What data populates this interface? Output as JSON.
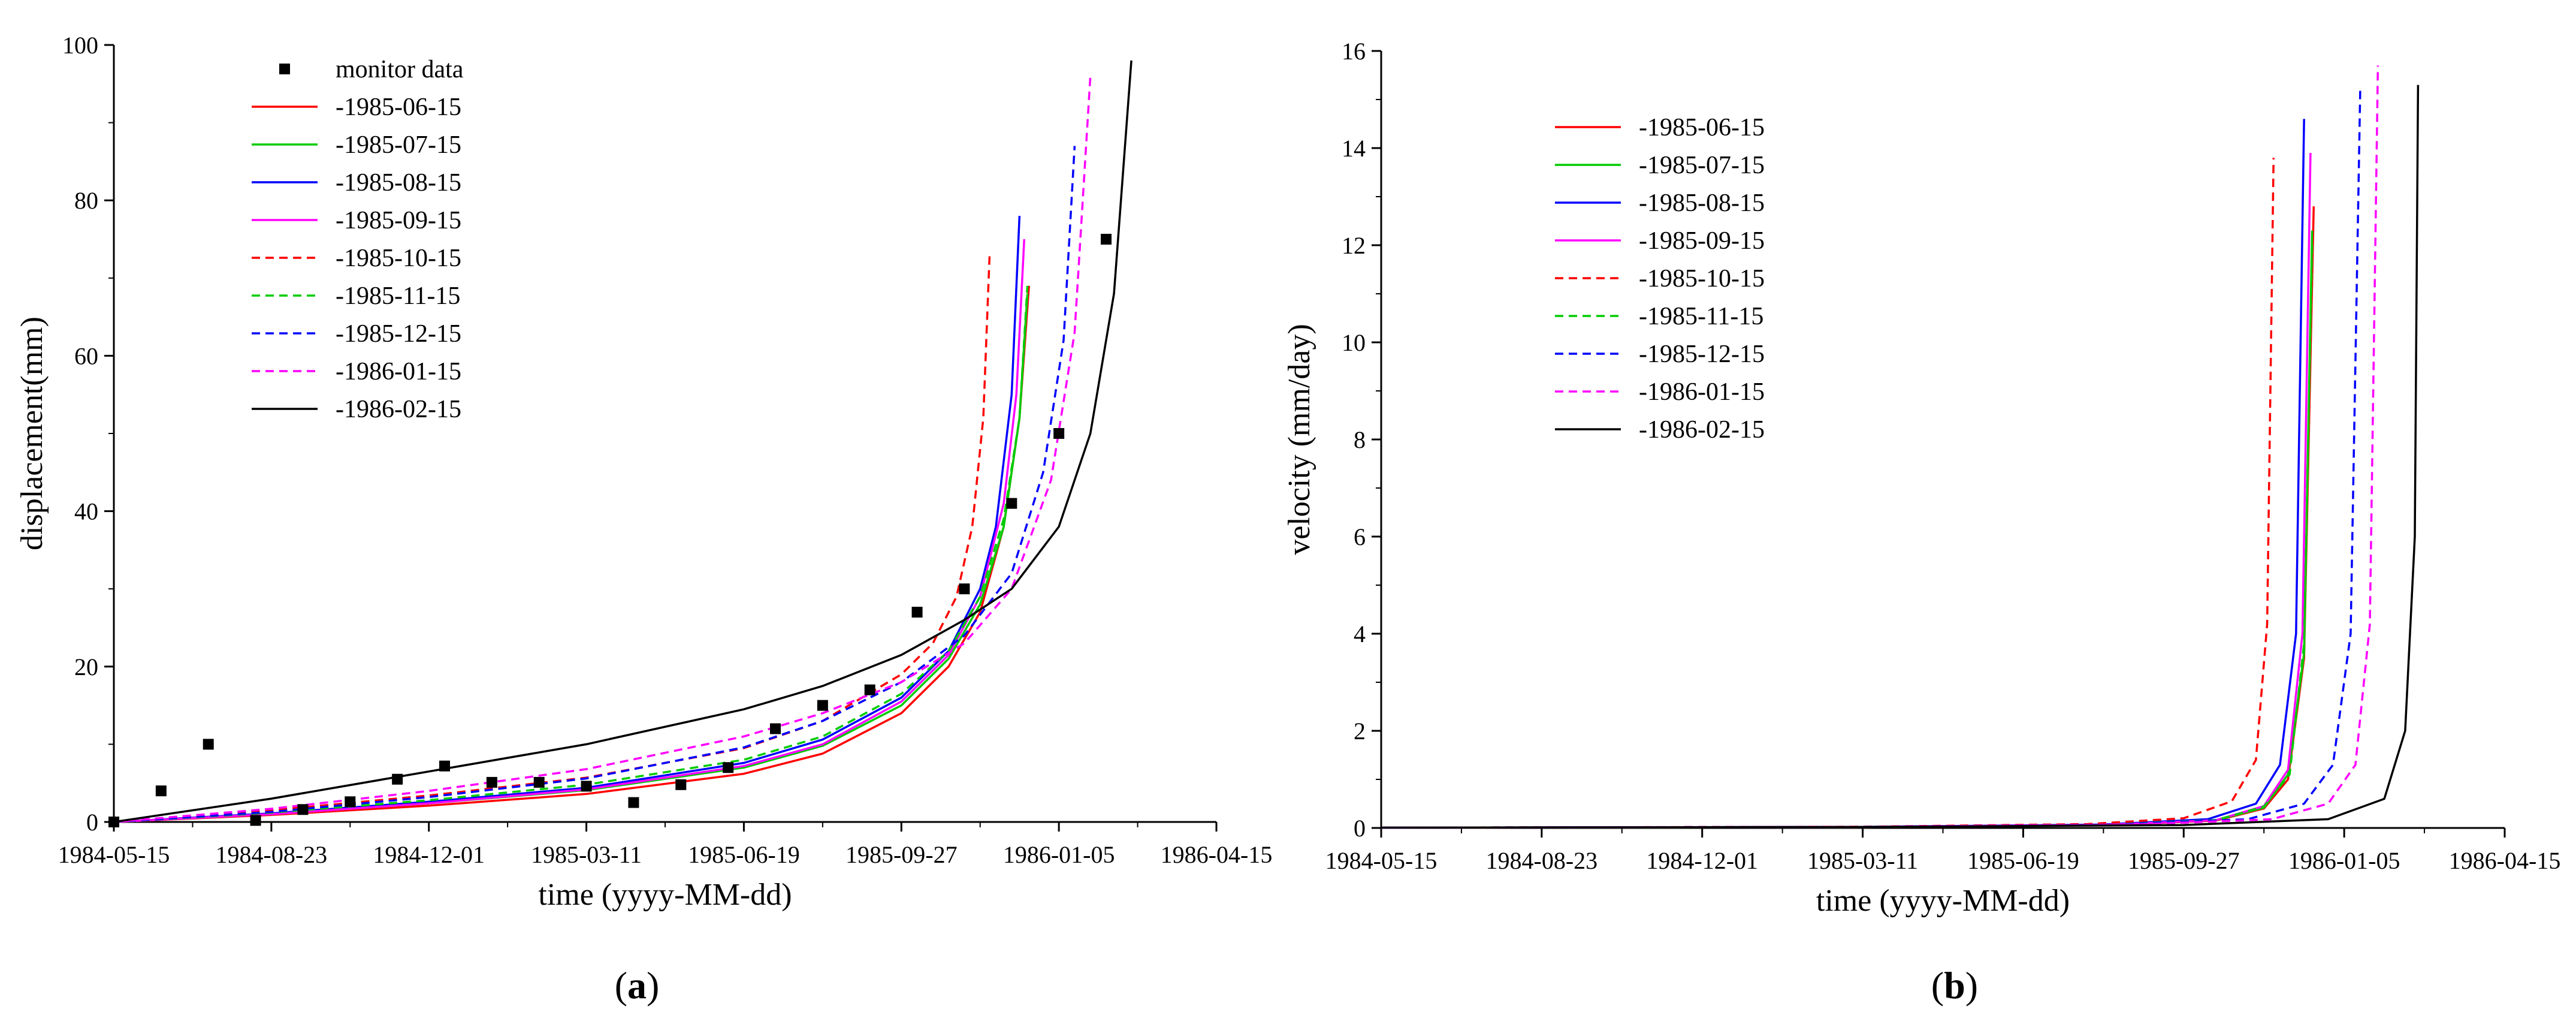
{
  "chart_data": [
    {
      "panel": "a",
      "type": "line",
      "xlabel": "time (yyyy-MM-dd)",
      "ylabel": "displacement(mm)",
      "x_ticks": [
        "1984-05-15",
        "1984-08-23",
        "1984-12-01",
        "1985-03-11",
        "1985-06-19",
        "1985-09-27",
        "1986-01-05",
        "1986-04-15"
      ],
      "xlim": [
        0,
        700
      ],
      "ylim": [
        0,
        100
      ],
      "y_ticks": [
        "0",
        "20",
        "40",
        "60",
        "80",
        "100"
      ],
      "y_tick_values": [
        0,
        20,
        40,
        60,
        80,
        100
      ],
      "x_unit": "days since 1984-05-15",
      "legend_position": "top-left",
      "scatter": {
        "name": "monitor data",
        "color": "#000000",
        "points": [
          [
            0,
            0
          ],
          [
            30,
            4
          ],
          [
            60,
            10
          ],
          [
            90,
            0.2
          ],
          [
            120,
            1.6
          ],
          [
            150,
            2.6
          ],
          [
            180,
            5.5
          ],
          [
            210,
            7.2
          ],
          [
            240,
            5.1
          ],
          [
            270,
            5.1
          ],
          [
            300,
            4.6
          ],
          [
            330,
            2.5
          ],
          [
            360,
            4.8
          ],
          [
            390,
            7
          ],
          [
            420,
            12
          ],
          [
            450,
            15
          ],
          [
            480,
            17
          ],
          [
            510,
            27
          ],
          [
            540,
            30
          ],
          [
            570,
            41
          ],
          [
            600,
            50
          ],
          [
            630,
            75
          ]
        ]
      },
      "series": [
        {
          "name": "-1985-06-15",
          "color": "#ff0000",
          "dash": "solid",
          "t_end": 581,
          "y_end": 69,
          "x": [
            0,
            100,
            200,
            300,
            400,
            450,
            500,
            530,
            550,
            565,
            575,
            581
          ],
          "values": [
            0,
            0.9,
            2.1,
            3.6,
            6.2,
            8.8,
            14,
            20,
            27,
            38,
            52,
            69
          ]
        },
        {
          "name": "-1985-07-15",
          "color": "#00cc00",
          "dash": "solid",
          "t_end": 580,
          "y_end": 68,
          "x": [
            0,
            100,
            200,
            300,
            400,
            450,
            500,
            530,
            550,
            565,
            575,
            580
          ],
          "values": [
            0,
            1,
            2.4,
            4.1,
            7,
            9.8,
            15,
            21,
            28,
            38,
            52,
            68
          ]
        },
        {
          "name": "-1985-08-15",
          "color": "#0000ff",
          "dash": "solid",
          "t_end": 575,
          "y_end": 78,
          "x": [
            0,
            100,
            200,
            300,
            400,
            450,
            500,
            530,
            550,
            560,
            570,
            575
          ],
          "values": [
            0,
            1.1,
            2.6,
            4.4,
            7.6,
            10.6,
            16,
            22,
            30,
            38,
            55,
            78
          ]
        },
        {
          "name": "-1985-09-15",
          "color": "#ff00ff",
          "dash": "solid",
          "t_end": 578,
          "y_end": 75,
          "x": [
            0,
            100,
            200,
            300,
            400,
            450,
            500,
            530,
            550,
            565,
            573,
            578
          ],
          "values": [
            0,
            1,
            2.4,
            4.2,
            7.2,
            10,
            15.5,
            21.5,
            29,
            41,
            55,
            75
          ]
        },
        {
          "name": "-1985-10-15",
          "color": "#ff0000",
          "dash": "dashed",
          "t_end": 556,
          "y_end": 73,
          "x": [
            0,
            100,
            200,
            300,
            400,
            450,
            500,
            520,
            535,
            545,
            552,
            556
          ],
          "values": [
            0,
            1.5,
            3.4,
            5.7,
            9.5,
            13,
            19,
            23,
            29,
            38,
            52,
            73
          ]
        },
        {
          "name": "-1985-11-15",
          "color": "#00cc00",
          "dash": "dashed",
          "t_end": 580,
          "y_end": 69,
          "x": [
            0,
            100,
            200,
            300,
            400,
            450,
            500,
            530,
            550,
            565,
            575,
            580
          ],
          "values": [
            0,
            1.2,
            2.8,
            4.8,
            8,
            11,
            16.5,
            22,
            29,
            39,
            52,
            69
          ]
        },
        {
          "name": "-1985-12-15",
          "color": "#0000ff",
          "dash": "dashed",
          "t_end": 610,
          "y_end": 87,
          "x": [
            0,
            100,
            200,
            300,
            400,
            450,
            500,
            540,
            570,
            590,
            603,
            610
          ],
          "values": [
            0,
            1.3,
            3.2,
            5.6,
            9.6,
            13,
            18,
            24,
            32,
            45,
            62,
            87
          ]
        },
        {
          "name": "-1986-01-15",
          "color": "#ff00ff",
          "dash": "dashed",
          "t_end": 620,
          "y_end": 96,
          "x": [
            0,
            100,
            200,
            300,
            400,
            450,
            500,
            540,
            570,
            595,
            610,
            620
          ],
          "values": [
            0,
            1.7,
            4,
            6.8,
            11,
            14,
            18,
            23,
            30,
            44,
            63,
            96
          ]
        },
        {
          "name": "-1986-02-15",
          "color": "#000000",
          "dash": "solid",
          "t_end": 646,
          "y_end": 98,
          "x": [
            0,
            100,
            200,
            300,
            400,
            450,
            500,
            540,
            570,
            600,
            620,
            635,
            646
          ],
          "values": [
            0,
            3,
            6.5,
            10,
            14.5,
            17.5,
            21.5,
            26,
            30,
            38,
            50,
            68,
            98
          ]
        }
      ]
    },
    {
      "panel": "b",
      "type": "line",
      "xlabel": "time (yyyy-MM-dd)",
      "ylabel": "velocity (mm/day)",
      "x_ticks": [
        "1984-05-15",
        "1984-08-23",
        "1984-12-01",
        "1985-03-11",
        "1985-06-19",
        "1985-09-27",
        "1986-01-05",
        "1986-04-15"
      ],
      "xlim": [
        0,
        700
      ],
      "ylim": [
        0,
        16
      ],
      "y_ticks": [
        "0",
        "2",
        "4",
        "6",
        "8",
        "10",
        "12",
        "14",
        "16"
      ],
      "y_tick_values": [
        0,
        2,
        4,
        6,
        8,
        10,
        12,
        14,
        16
      ],
      "x_unit": "days since 1984-05-15",
      "legend_position": "top-left",
      "series": [
        {
          "name": "-1985-06-15",
          "color": "#ff0000",
          "dash": "solid",
          "x": [
            0,
            300,
            450,
            520,
            550,
            565,
            575,
            581
          ],
          "values": [
            0.005,
            0.02,
            0.06,
            0.15,
            0.4,
            1,
            3.5,
            12.8
          ]
        },
        {
          "name": "-1985-07-15",
          "color": "#00cc00",
          "dash": "solid",
          "x": [
            0,
            300,
            450,
            520,
            550,
            565,
            575,
            580
          ],
          "values": [
            0.005,
            0.02,
            0.06,
            0.16,
            0.42,
            1.1,
            3.6,
            12.3
          ]
        },
        {
          "name": "-1985-08-15",
          "color": "#0000ff",
          "dash": "solid",
          "x": [
            0,
            300,
            450,
            515,
            545,
            560,
            570,
            575
          ],
          "values": [
            0.006,
            0.022,
            0.07,
            0.18,
            0.5,
            1.3,
            4,
            14.6
          ]
        },
        {
          "name": "-1985-09-15",
          "color": "#ff00ff",
          "dash": "solid",
          "x": [
            0,
            300,
            450,
            520,
            550,
            565,
            574,
            579
          ],
          "values": [
            0.005,
            0.02,
            0.06,
            0.16,
            0.45,
            1.2,
            4,
            13.9
          ]
        },
        {
          "name": "-1985-10-15",
          "color": "#ff0000",
          "dash": "dashed",
          "x": [
            0,
            300,
            440,
            500,
            530,
            545,
            552,
            556
          ],
          "values": [
            0.006,
            0.025,
            0.08,
            0.2,
            0.55,
            1.4,
            4.2,
            13.8
          ]
        },
        {
          "name": "-1985-11-15",
          "color": "#00cc00",
          "dash": "dashed",
          "x": [
            0,
            300,
            450,
            520,
            550,
            566,
            575,
            580
          ],
          "values": [
            0.005,
            0.02,
            0.06,
            0.16,
            0.44,
            1.1,
            3.8,
            12
          ]
        },
        {
          "name": "-1985-12-15",
          "color": "#0000ff",
          "dash": "dashed",
          "x": [
            0,
            300,
            460,
            540,
            575,
            593,
            604,
            610
          ],
          "values": [
            0.006,
            0.022,
            0.07,
            0.18,
            0.5,
            1.3,
            4,
            15.2
          ]
        },
        {
          "name": "-1986-01-15",
          "color": "#ff00ff",
          "dash": "dashed",
          "x": [
            0,
            300,
            470,
            555,
            590,
            607,
            616,
            621
          ],
          "values": [
            0.006,
            0.022,
            0.07,
            0.18,
            0.5,
            1.3,
            4.2,
            15.7
          ]
        },
        {
          "name": "-1986-02-15",
          "color": "#000000",
          "dash": "solid",
          "x": [
            0,
            300,
            500,
            590,
            625,
            638,
            644,
            646
          ],
          "values": [
            0.006,
            0.02,
            0.06,
            0.18,
            0.6,
            2,
            6,
            15.3
          ]
        }
      ]
    }
  ],
  "panel_labels": [
    {
      "open": "(",
      "letter": "a",
      "close": ")"
    },
    {
      "open": "(",
      "letter": "b",
      "close": ")"
    }
  ]
}
